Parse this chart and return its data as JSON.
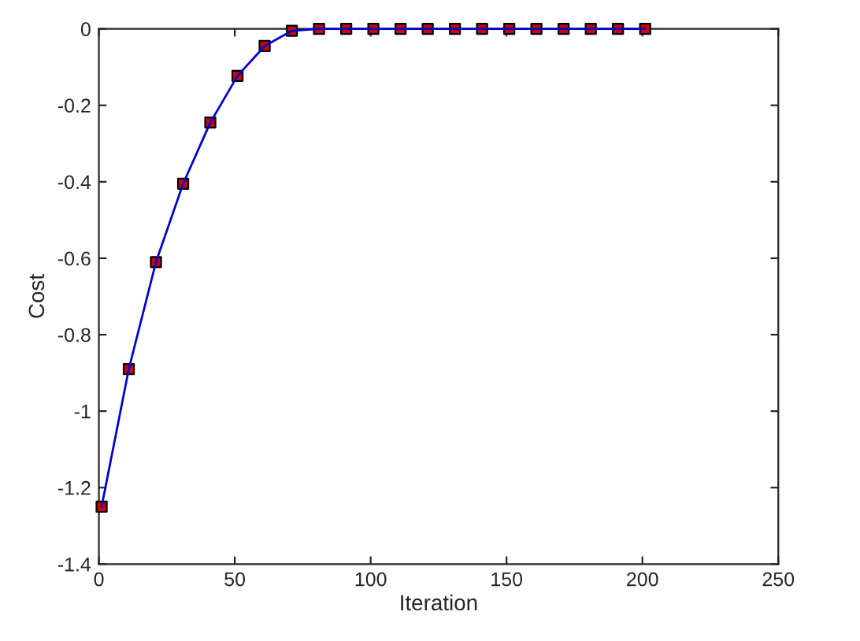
{
  "chart_data": {
    "type": "line",
    "xlabel": "Iteration",
    "ylabel": "Cost",
    "x": [
      1,
      11,
      21,
      31,
      41,
      51,
      61,
      71,
      81,
      91,
      101,
      111,
      121,
      131,
      141,
      151,
      161,
      171,
      181,
      191,
      201
    ],
    "series": [
      {
        "color": "#0000cc",
        "colors": [
          "#cc0000",
          "#cc0000",
          "#cc0000",
          "#cc0000",
          "#cc0000",
          "#cc0000",
          "#cc0000",
          "#cc0000",
          "#cc0000",
          "#cc0000",
          "#cc0000",
          "#cc0000",
          "#cc0000",
          "#cc0000",
          "#cc0000",
          "#cc0000",
          "#cc0000",
          "#cc0000",
          "#cc0000",
          "#cc0000",
          "#cc0000"
        ],
        "values": [
          -1.25,
          -0.89,
          -0.61,
          -0.405,
          -0.245,
          -0.123,
          -0.045,
          -0.005,
          0,
          0,
          0,
          0,
          0,
          0,
          0,
          0,
          0,
          0,
          0,
          0,
          0
        ]
      }
    ],
    "xlim": [
      0,
      250
    ],
    "xticks": [
      0,
      50,
      100,
      150,
      200,
      250
    ],
    "ylim": [
      -1.4,
      0
    ],
    "yticks": [
      -1.4,
      -1.2,
      -1,
      -0.8,
      -0.6,
      -0.4,
      -0.2,
      0
    ],
    "marker": "square",
    "line_style": "solid",
    "grid": false,
    "legend": false
  }
}
